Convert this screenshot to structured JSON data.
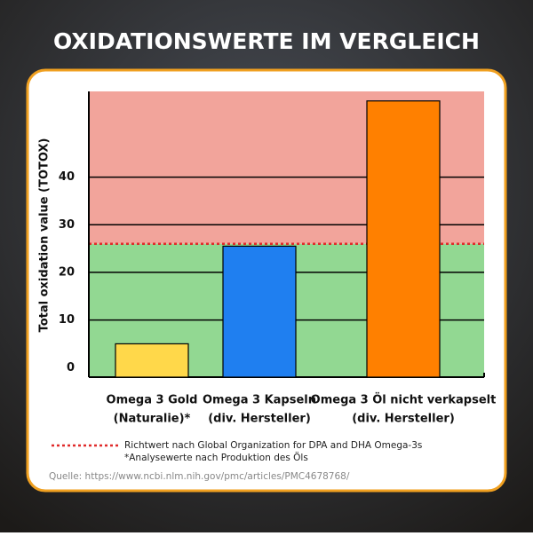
{
  "chart_data": {
    "type": "bar",
    "title": "OXIDATIONSWERTE IM VERGLEICH",
    "y_label": "Total oxidation value (TOTOX)",
    "categories": [
      [
        "Omega 3 Gold",
        "(Naturalie)*"
      ],
      [
        "Omega 3 Kapseln",
        "(div. Hersteller)"
      ],
      [
        "Omega 3 Öl nicht verkapselt",
        "(div. Hersteller)"
      ]
    ],
    "values": [
      5,
      25.5,
      56
    ],
    "colors": [
      "#ffd84a",
      "#1f7ff0",
      "#ff8000"
    ],
    "ylim": [
      -2,
      58
    ],
    "yticks": [
      0,
      10,
      20,
      30,
      40
    ],
    "grid": true,
    "threshold": {
      "name": "Richtwert nach Global Organization for DPA and DHA Omega-3s",
      "value": 26,
      "color": "#e02a2a",
      "below_color": "#92d892",
      "above_color": "#f2a49b"
    },
    "note": "*Analysewerte nach Produktion des Öls",
    "source": "Quelle: https://www.ncbi.nlm.nih.gov/pmc/articles/PMC4678768/"
  }
}
